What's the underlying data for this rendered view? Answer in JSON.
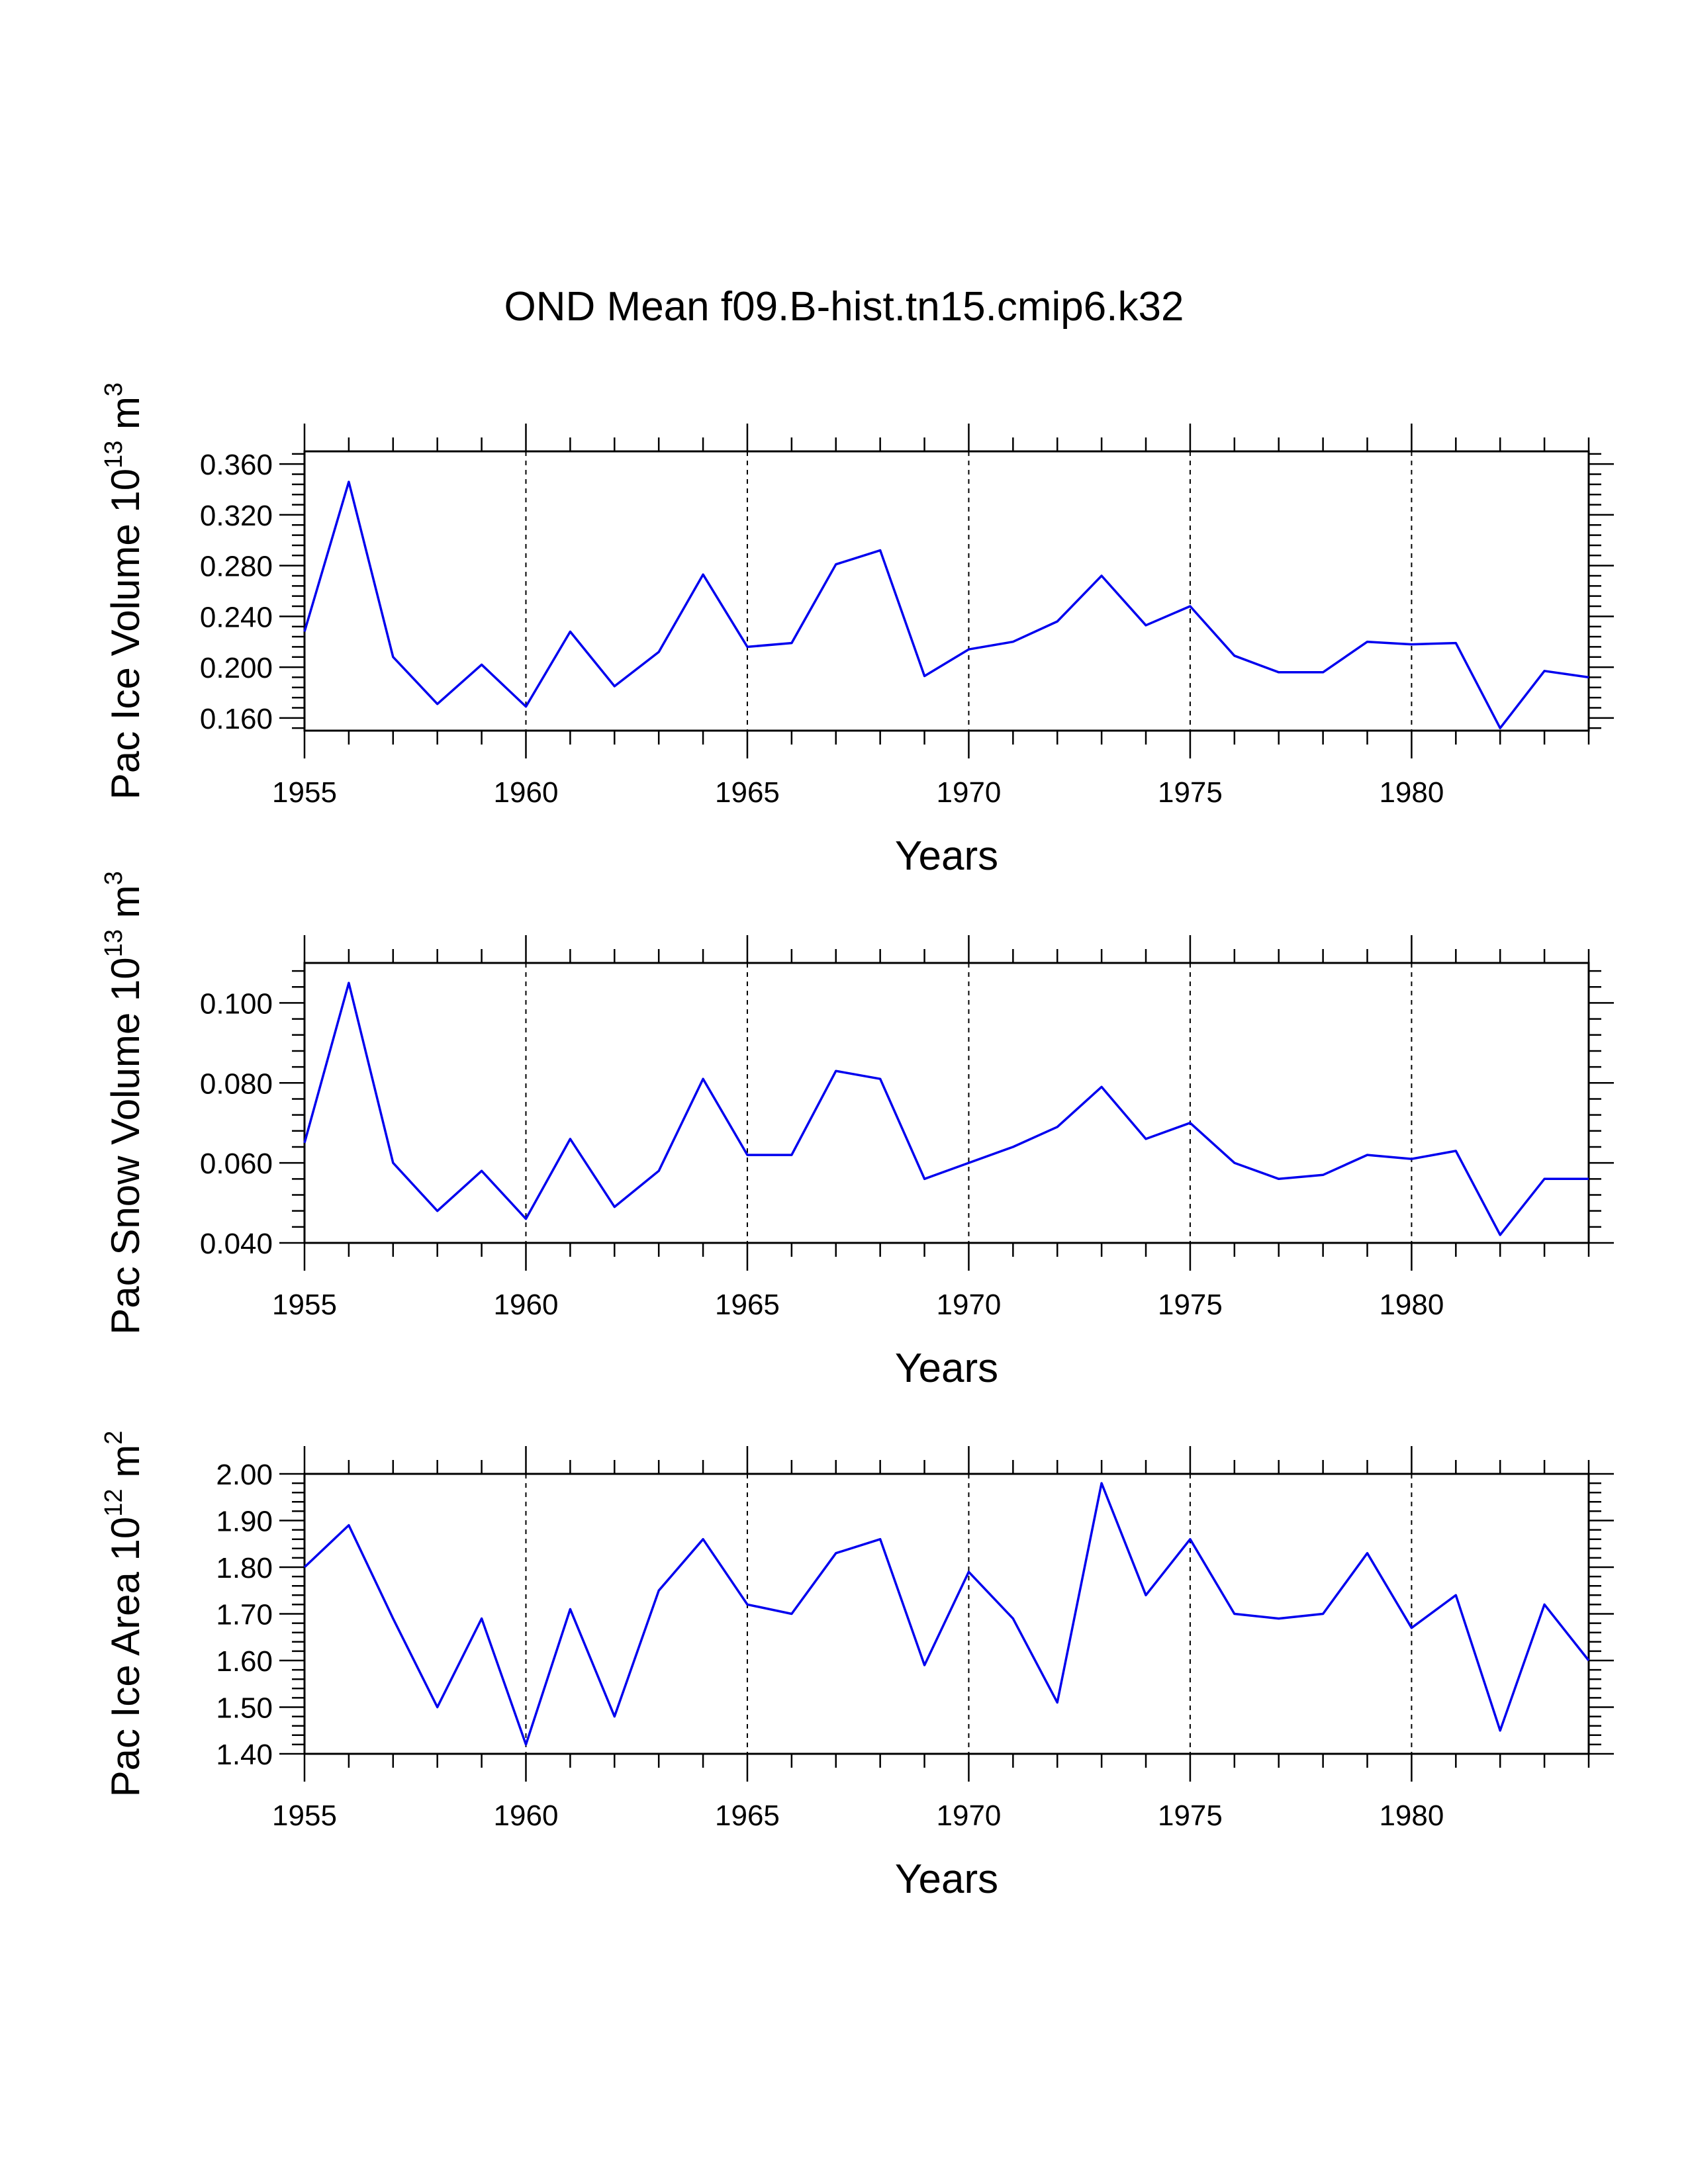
{
  "title": "OND Mean f09.B-hist.tn15.cmip6.k32",
  "colors": {
    "series": "#0000ee",
    "axes": "#000000",
    "background": "#ffffff"
  },
  "chart_data": [
    {
      "type": "line",
      "id": "ice-volume",
      "xlabel": "Years",
      "ylabel_main": "Pac Ice Volume 10",
      "ylabel_exp": "13",
      "ylabel_unit": " m",
      "ylabel_unit_exp": "3",
      "xlim": [
        1955,
        1984
      ],
      "ylim": [
        0.15,
        0.37
      ],
      "xticks": [
        1955,
        1960,
        1965,
        1970,
        1975,
        1980
      ],
      "yticks": [
        0.16,
        0.2,
        0.24,
        0.28,
        0.32,
        0.36
      ],
      "ytick_labels": [
        "0.160",
        "0.200",
        "0.240",
        "0.280",
        "0.320",
        "0.360"
      ],
      "grid": "dashed vertical lines at major x ticks",
      "x": [
        1955,
        1956,
        1957,
        1958,
        1959,
        1960,
        1961,
        1962,
        1963,
        1964,
        1965,
        1966,
        1967,
        1968,
        1969,
        1970,
        1971,
        1972,
        1973,
        1974,
        1975,
        1976,
        1977,
        1978,
        1979,
        1980,
        1981,
        1982,
        1983,
        1984
      ],
      "values": [
        0.228,
        0.346,
        0.208,
        0.171,
        0.202,
        0.169,
        0.228,
        0.185,
        0.212,
        0.273,
        0.216,
        0.219,
        0.281,
        0.292,
        0.193,
        0.214,
        0.22,
        0.236,
        0.272,
        0.233,
        0.248,
        0.209,
        0.196,
        0.196,
        0.22,
        0.218,
        0.219,
        0.152,
        0.197,
        0.192
      ]
    },
    {
      "type": "line",
      "id": "snow-volume",
      "xlabel": "Years",
      "ylabel_main": "Pac Snow Volume 10",
      "ylabel_exp": "13",
      "ylabel_unit": " m",
      "ylabel_unit_exp": "3",
      "xlim": [
        1955,
        1984
      ],
      "ylim": [
        0.04,
        0.11
      ],
      "xticks": [
        1955,
        1960,
        1965,
        1970,
        1975,
        1980
      ],
      "yticks": [
        0.04,
        0.06,
        0.08,
        0.1
      ],
      "ytick_labels": [
        "0.040",
        "0.060",
        "0.080",
        "0.100"
      ],
      "grid": "dashed vertical lines at major x ticks",
      "x": [
        1955,
        1956,
        1957,
        1958,
        1959,
        1960,
        1961,
        1962,
        1963,
        1964,
        1965,
        1966,
        1967,
        1968,
        1969,
        1970,
        1971,
        1972,
        1973,
        1974,
        1975,
        1976,
        1977,
        1978,
        1979,
        1980,
        1981,
        1982,
        1983,
        1984
      ],
      "values": [
        0.065,
        0.105,
        0.06,
        0.048,
        0.058,
        0.046,
        0.066,
        0.049,
        0.058,
        0.081,
        0.062,
        0.062,
        0.083,
        0.081,
        0.056,
        0.06,
        0.064,
        0.069,
        0.079,
        0.066,
        0.07,
        0.06,
        0.056,
        0.057,
        0.062,
        0.061,
        0.063,
        0.042,
        0.056,
        0.056
      ]
    },
    {
      "type": "line",
      "id": "ice-area",
      "xlabel": "Years",
      "ylabel_main": "Pac Ice Area 10",
      "ylabel_exp": "12",
      "ylabel_unit": " m",
      "ylabel_unit_exp": "2",
      "xlim": [
        1955,
        1984
      ],
      "ylim": [
        1.4,
        2.0
      ],
      "xticks": [
        1955,
        1960,
        1965,
        1970,
        1975,
        1980
      ],
      "yticks": [
        1.4,
        1.5,
        1.6,
        1.7,
        1.8,
        1.9,
        2.0
      ],
      "ytick_labels": [
        "1.40",
        "1.50",
        "1.60",
        "1.70",
        "1.80",
        "1.90",
        "2.00"
      ],
      "grid": "dashed vertical lines at major x ticks",
      "x": [
        1955,
        1956,
        1957,
        1958,
        1959,
        1960,
        1961,
        1962,
        1963,
        1964,
        1965,
        1966,
        1967,
        1968,
        1969,
        1970,
        1971,
        1972,
        1973,
        1974,
        1975,
        1976,
        1977,
        1978,
        1979,
        1980,
        1981,
        1982,
        1983,
        1984
      ],
      "values": [
        1.8,
        1.89,
        1.69,
        1.5,
        1.69,
        1.42,
        1.71,
        1.48,
        1.75,
        1.86,
        1.72,
        1.7,
        1.83,
        1.86,
        1.59,
        1.79,
        1.69,
        1.51,
        1.98,
        1.74,
        1.86,
        1.7,
        1.69,
        1.7,
        1.83,
        1.67,
        1.74,
        1.45,
        1.72,
        1.6
      ]
    }
  ]
}
